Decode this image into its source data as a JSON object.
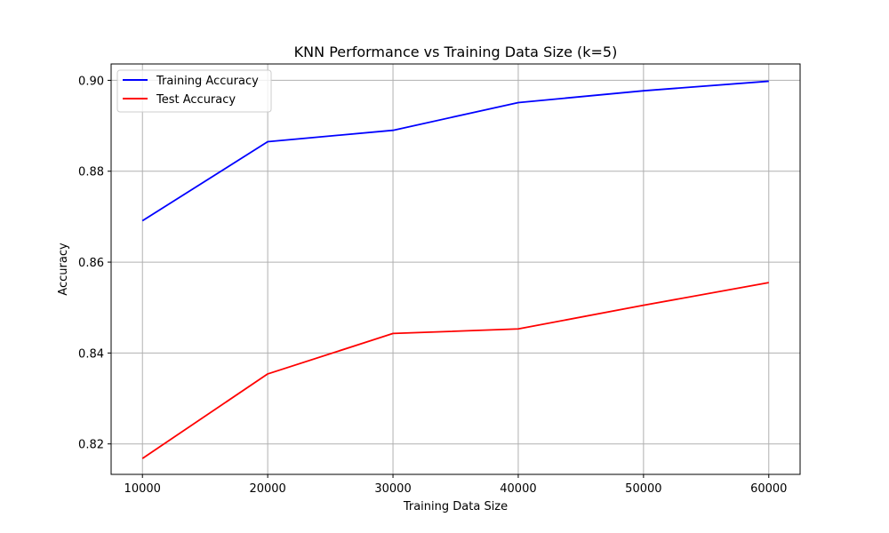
{
  "chart_data": {
    "type": "line",
    "title": "KNN Performance vs Training Data Size (k=5)",
    "xlabel": "Training Data Size",
    "ylabel": "Accuracy",
    "x": [
      10000,
      20000,
      30000,
      40000,
      50000,
      60000
    ],
    "xticks": [
      10000,
      20000,
      30000,
      40000,
      50000,
      60000
    ],
    "yticks": [
      0.82,
      0.84,
      0.86,
      0.88,
      0.9
    ],
    "ytick_labels": [
      "0.82",
      "0.84",
      "0.86",
      "0.88",
      "0.90"
    ],
    "xlim": [
      7500,
      62500
    ],
    "ylim": [
      0.8133,
      0.9036
    ],
    "grid": true,
    "legend_position": "top-left",
    "series": [
      {
        "name": "Training Accuracy",
        "color": "#0000ff",
        "values": [
          0.8691,
          0.8865,
          0.889,
          0.8951,
          0.8977,
          0.8998
        ]
      },
      {
        "name": "Test Accuracy",
        "color": "#ff0000",
        "values": [
          0.8168,
          0.8354,
          0.8443,
          0.8453,
          0.8505,
          0.8555
        ]
      }
    ]
  }
}
